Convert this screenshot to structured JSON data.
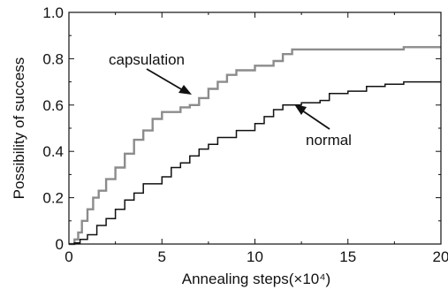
{
  "chart_data": {
    "type": "line",
    "xlabel": "Annealing steps(×10⁴)",
    "ylabel": "Possibility of success",
    "xlim": [
      0,
      20
    ],
    "ylim": [
      0,
      1.0
    ],
    "x_ticks": [
      0,
      5,
      10,
      15,
      20
    ],
    "y_ticks": [
      0,
      0.2,
      0.4,
      0.6,
      0.8,
      1.0
    ],
    "x_tick_labels": [
      "0",
      "5",
      "10",
      "15",
      "20"
    ],
    "y_tick_labels": [
      "0",
      "0.2",
      "0.4",
      "0.6",
      "0.8",
      "1.0"
    ],
    "grid": false,
    "series": [
      {
        "name": "capsulation",
        "color": "#8c8c8c",
        "step": true,
        "points": [
          [
            0,
            0
          ],
          [
            0.3,
            0.02
          ],
          [
            0.5,
            0.05
          ],
          [
            0.7,
            0.1
          ],
          [
            1.0,
            0.15
          ],
          [
            1.3,
            0.2
          ],
          [
            1.6,
            0.23
          ],
          [
            2.0,
            0.28
          ],
          [
            2.5,
            0.33
          ],
          [
            3.0,
            0.39
          ],
          [
            3.5,
            0.45
          ],
          [
            4.0,
            0.49
          ],
          [
            4.5,
            0.54
          ],
          [
            5.0,
            0.57
          ],
          [
            6.0,
            0.59
          ],
          [
            6.5,
            0.6
          ],
          [
            7.0,
            0.63
          ],
          [
            7.5,
            0.67
          ],
          [
            8.0,
            0.7
          ],
          [
            8.5,
            0.73
          ],
          [
            9.0,
            0.75
          ],
          [
            10.0,
            0.77
          ],
          [
            11.0,
            0.79
          ],
          [
            11.5,
            0.82
          ],
          [
            12.0,
            0.84
          ],
          [
            15.0,
            0.84
          ],
          [
            18.0,
            0.85
          ],
          [
            20.0,
            0.85
          ]
        ]
      },
      {
        "name": "normal",
        "color": "#111111",
        "step": true,
        "points": [
          [
            0,
            0
          ],
          [
            0.3,
            0.005
          ],
          [
            0.6,
            0.02
          ],
          [
            1.0,
            0.04
          ],
          [
            1.5,
            0.08
          ],
          [
            2.0,
            0.11
          ],
          [
            2.5,
            0.15
          ],
          [
            3.0,
            0.19
          ],
          [
            3.5,
            0.22
          ],
          [
            4.0,
            0.26
          ],
          [
            5.0,
            0.29
          ],
          [
            5.5,
            0.33
          ],
          [
            6.0,
            0.35
          ],
          [
            6.5,
            0.38
          ],
          [
            7.0,
            0.41
          ],
          [
            7.5,
            0.43
          ],
          [
            8.0,
            0.46
          ],
          [
            9.0,
            0.49
          ],
          [
            10.0,
            0.52
          ],
          [
            10.5,
            0.55
          ],
          [
            11.0,
            0.58
          ],
          [
            11.5,
            0.6
          ],
          [
            12.5,
            0.61
          ],
          [
            13.5,
            0.62
          ],
          [
            14.0,
            0.65
          ],
          [
            15.0,
            0.66
          ],
          [
            16.0,
            0.68
          ],
          [
            17.0,
            0.69
          ],
          [
            18.0,
            0.7
          ],
          [
            20.0,
            0.7
          ]
        ]
      }
    ],
    "annotations": [
      {
        "text": "capsulation",
        "series": "capsulation",
        "points_to": [
          6.8,
          0.62
        ]
      },
      {
        "text": "normal",
        "series": "normal",
        "points_to": [
          12.0,
          0.61
        ]
      }
    ]
  }
}
